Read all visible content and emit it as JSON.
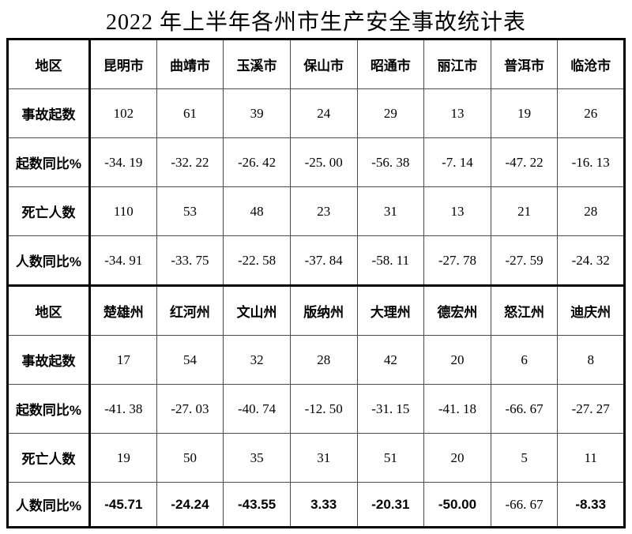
{
  "title": "2022 年上半年各州市生产安全事故统计表",
  "region_header_label": "地区",
  "sections": [
    {
      "regions": [
        "昆明市",
        "曲靖市",
        "玉溪市",
        "保山市",
        "昭通市",
        "丽江市",
        "普洱市",
        "临沧市"
      ],
      "rows": [
        {
          "label": "事故起数",
          "cell_style": "serif",
          "cells": [
            "102",
            "61",
            "39",
            "24",
            "29",
            "13",
            "19",
            "26"
          ]
        },
        {
          "label": "起数同比%",
          "cell_style": "serif",
          "cells": [
            "-34. 19",
            "-32. 22",
            "-26. 42",
            "-25. 00",
            "-56. 38",
            "-7. 14",
            "-47. 22",
            "-16. 13"
          ]
        },
        {
          "label": "死亡人数",
          "cell_style": "serif",
          "cells": [
            "110",
            "53",
            "48",
            "23",
            "31",
            "13",
            "21",
            "28"
          ]
        },
        {
          "label": "人数同比%",
          "cell_style": "serif",
          "cells": [
            "-34. 91",
            "-33. 75",
            "-22. 58",
            "-37. 84",
            "-58. 11",
            "-27. 78",
            "-27. 59",
            "-24. 32"
          ]
        }
      ]
    },
    {
      "regions": [
        "楚雄州",
        "红河州",
        "文山州",
        "版纳州",
        "大理州",
        "德宏州",
        "怒江州",
        "迪庆州"
      ],
      "rows": [
        {
          "label": "事故起数",
          "cell_style": "serif",
          "cells": [
            "17",
            "54",
            "32",
            "28",
            "42",
            "20",
            "6",
            "8"
          ]
        },
        {
          "label": "起数同比%",
          "cell_style": "serif",
          "cells": [
            "-41. 38",
            "-27. 03",
            "-40. 74",
            "-12. 50",
            "-31. 15",
            "-41. 18",
            "-66. 67",
            "-27. 27"
          ]
        },
        {
          "label": "死亡人数",
          "cell_style": "serif",
          "cells": [
            "19",
            "50",
            "35",
            "31",
            "51",
            "20",
            "5",
            "11"
          ]
        },
        {
          "label": "人数同比%",
          "cell_style": "sans-bold",
          "serif_cells": [
            6
          ],
          "cells": [
            "-45.71",
            "-24.24",
            "-43.55",
            "3.33",
            "-20.31",
            "-50.00",
            "-66. 67",
            "-8.33"
          ]
        }
      ]
    }
  ]
}
